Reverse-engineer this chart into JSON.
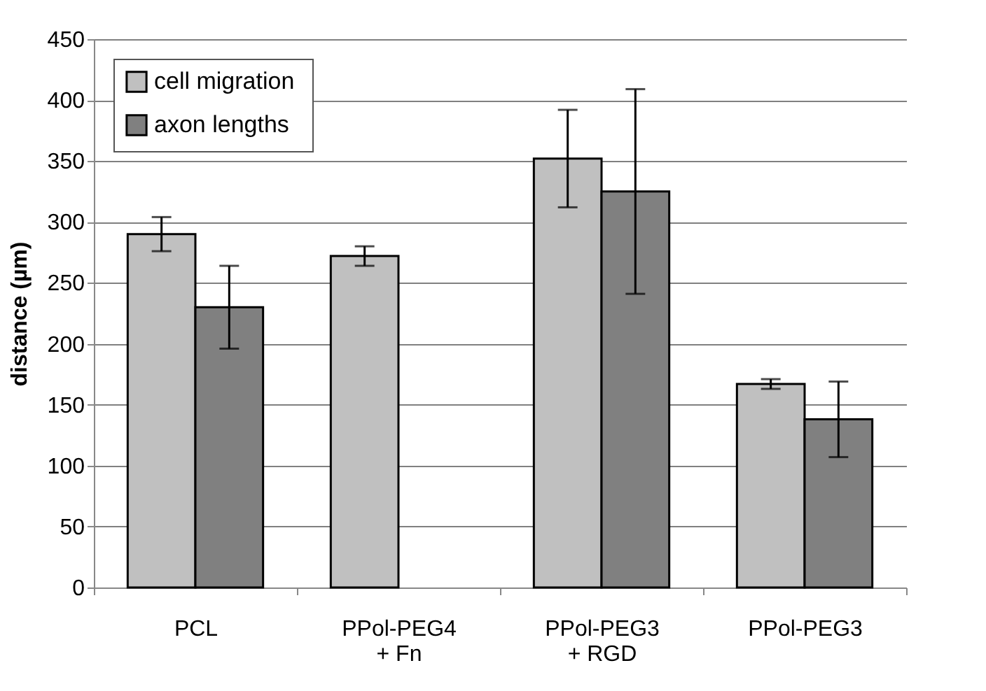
{
  "chart_data": {
    "type": "bar",
    "ylabel": "distance (µm)",
    "categories": [
      "PCL",
      "PPol-PEG4\n+ Fn",
      "PPol-PEG3\n+ RGD",
      "PPol-PEG3"
    ],
    "series": [
      {
        "name": "cell  migration",
        "color": "#c0c0c0",
        "values": [
          290,
          272,
          352,
          167
        ],
        "errors": [
          14,
          8,
          40,
          4
        ]
      },
      {
        "name": "axon lengths",
        "color": "#808080",
        "values": [
          230,
          null,
          325,
          138
        ],
        "errors": [
          34,
          null,
          84,
          31
        ]
      }
    ],
    "ylim": [
      0,
      450
    ],
    "yticks": [
      0,
      50,
      100,
      150,
      200,
      250,
      300,
      350,
      400,
      450
    ],
    "grid": "y",
    "legend": "top left"
  }
}
